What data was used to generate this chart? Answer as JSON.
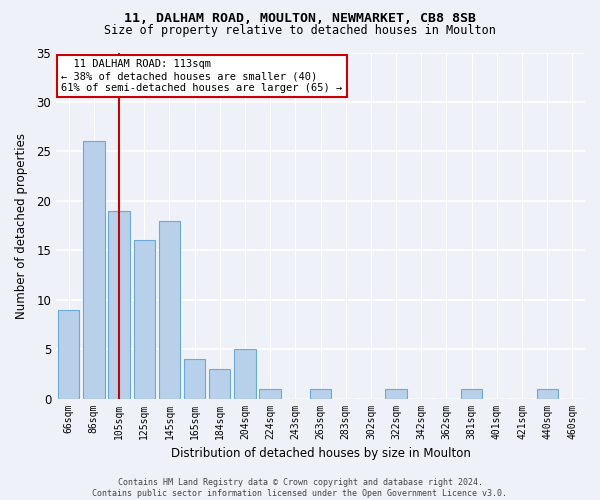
{
  "title_line1": "11, DALHAM ROAD, MOULTON, NEWMARKET, CB8 8SB",
  "title_line2": "Size of property relative to detached houses in Moulton",
  "xlabel": "Distribution of detached houses by size in Moulton",
  "ylabel": "Number of detached properties",
  "categories": [
    "66sqm",
    "86sqm",
    "105sqm",
    "125sqm",
    "145sqm",
    "165sqm",
    "184sqm",
    "204sqm",
    "224sqm",
    "243sqm",
    "263sqm",
    "283sqm",
    "302sqm",
    "322sqm",
    "342sqm",
    "362sqm",
    "381sqm",
    "401sqm",
    "421sqm",
    "440sqm",
    "460sqm"
  ],
  "values": [
    9,
    26,
    19,
    16,
    18,
    4,
    3,
    5,
    1,
    0,
    1,
    0,
    0,
    1,
    0,
    0,
    1,
    0,
    0,
    1,
    0
  ],
  "bar_color": "#b8d0ea",
  "bar_edge_color": "#6aaad4",
  "red_line_index": 2,
  "ylim": [
    0,
    35
  ],
  "yticks": [
    0,
    5,
    10,
    15,
    20,
    25,
    30,
    35
  ],
  "annotation_text": "  11 DALHAM ROAD: 113sqm  \n← 38% of detached houses are smaller (40)\n61% of semi-detached houses are larger (65) →",
  "annotation_box_color": "#ffffff",
  "annotation_box_edge_color": "#cc0000",
  "red_line_color": "#cc0000",
  "footnote": "Contains HM Land Registry data © Crown copyright and database right 2024.\nContains public sector information licensed under the Open Government Licence v3.0.",
  "background_color": "#eef2f8",
  "plot_bg_color": "#eef2f8"
}
